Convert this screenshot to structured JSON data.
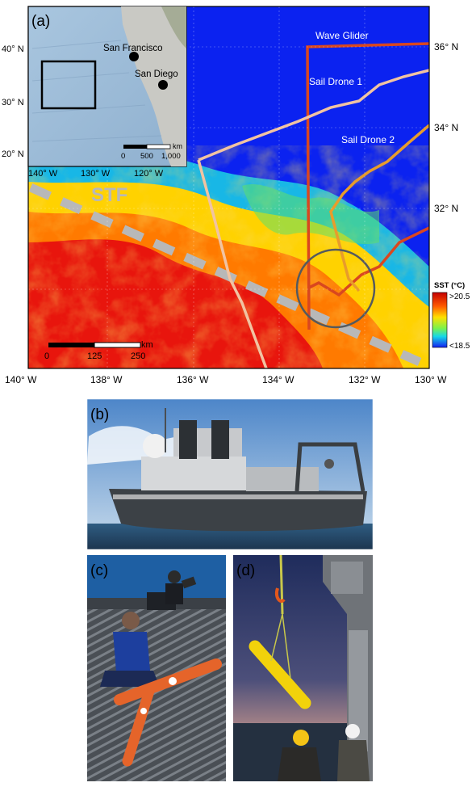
{
  "map": {
    "panel_label": "(a)",
    "colors": {
      "sst_warm": "#e8150d",
      "sst_mid": "#ffd200",
      "sst_cool": "#0b22f0",
      "front": "#b8b8b8"
    },
    "x_ticks": [
      "140° W",
      "138° W",
      "136° W",
      "134° W",
      "132° W",
      "130° W"
    ],
    "y_ticks": [
      "36° N",
      "34° N",
      "32° N"
    ],
    "front_label": "STF",
    "tracks": [
      {
        "name": "Wave Glider",
        "color": "#d9471f"
      },
      {
        "name": "Sail Drone 1",
        "color": "#f1c3a2"
      },
      {
        "name": "Sail Drone 2",
        "color": "#e89c2b"
      }
    ],
    "colorbar": {
      "title": "SST (°C)",
      "max_label": ">20.5",
      "min_label": "<18.5"
    },
    "scalebar": {
      "unit": "km",
      "labels": [
        "0",
        "125",
        "250"
      ]
    }
  },
  "inset": {
    "x_ticks": [
      "140° W",
      "130° W",
      "120° W"
    ],
    "y_ticks": [
      "40° N",
      "30° N",
      "20° N"
    ],
    "cities": [
      "San Francisco",
      "San Diego"
    ],
    "scalebar": {
      "unit": "km",
      "labels": [
        "0",
        "500",
        "1,000"
      ]
    }
  },
  "photos": [
    {
      "panel_label": "(b)",
      "icon": "research-ship-photo"
    },
    {
      "panel_label": "(c)",
      "icon": "wave-glider-on-deck-photo"
    },
    {
      "panel_label": "(d)",
      "icon": "sensor-deployment-photo"
    }
  ]
}
